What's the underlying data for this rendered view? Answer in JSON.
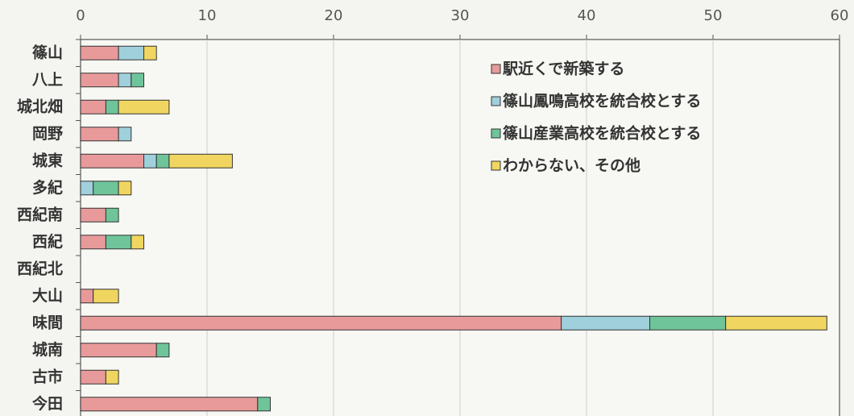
{
  "chart_data": {
    "type": "stacked_bar_horizontal",
    "categories": [
      "篠山",
      "八上",
      "城北畑",
      "岡野",
      "城東",
      "多紀",
      "西紀南",
      "西紀",
      "西紀北",
      "大山",
      "味間",
      "城南",
      "古市",
      "今田"
    ],
    "series": [
      {
        "name": "駅近くで新築する",
        "color": "#e89a9a",
        "values": [
          3,
          3,
          2,
          3,
          5,
          0,
          2,
          2,
          0,
          1,
          38,
          6,
          2,
          14
        ]
      },
      {
        "name": "篠山鳳鳴高校を統合校とする",
        "color": "#9fd0dc",
        "values": [
          2,
          1,
          0,
          1,
          1,
          1,
          0,
          0,
          0,
          0,
          7,
          0,
          0,
          0
        ]
      },
      {
        "name": "篠山産業高校を統合校とする",
        "color": "#6fc49a",
        "values": [
          0,
          1,
          1,
          0,
          1,
          2,
          1,
          2,
          0,
          0,
          6,
          1,
          0,
          1
        ]
      },
      {
        "name": "わからない、その他",
        "color": "#f0d660",
        "values": [
          1,
          0,
          4,
          0,
          5,
          1,
          0,
          1,
          0,
          2,
          8,
          0,
          1,
          0
        ]
      }
    ],
    "xlim": [
      0,
      60
    ],
    "xticks": [
      0,
      10,
      20,
      30,
      40,
      50,
      60
    ],
    "grid": true,
    "legend": "top-right"
  }
}
